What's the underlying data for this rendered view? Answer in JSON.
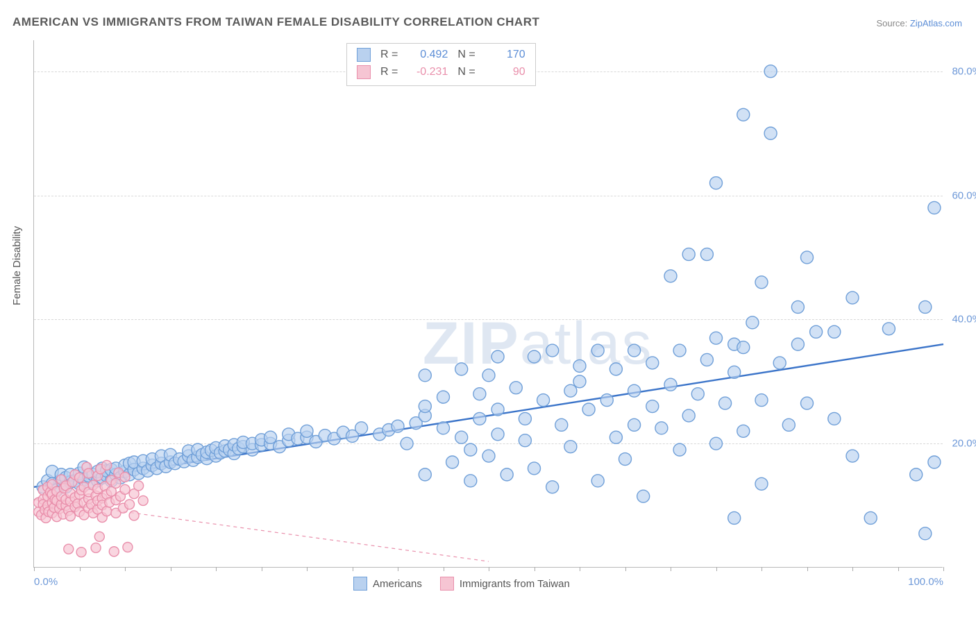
{
  "title": "AMERICAN VS IMMIGRANTS FROM TAIWAN FEMALE DISABILITY CORRELATION CHART",
  "source_prefix": "Source: ",
  "source_link": "ZipAtlas.com",
  "ylabel": "Female Disability",
  "watermark_bold": "ZIP",
  "watermark_light": "atlas",
  "chart": {
    "type": "scatter",
    "xlim": [
      0,
      100
    ],
    "ylim": [
      0,
      85
    ],
    "yticks": [
      20,
      40,
      60,
      80
    ],
    "ytick_labels": [
      "20.0%",
      "40.0%",
      "60.0%",
      "80.0%"
    ],
    "xtick_minor_step": 5,
    "xtick_labels": [
      {
        "pos": 0,
        "label": "0.0%"
      },
      {
        "pos": 100,
        "label": "100.0%"
      }
    ],
    "background_color": "#ffffff",
    "grid_color": "#d8d8d8",
    "axis_color": "#b8b8b8",
    "marker_radius_blue": 9,
    "marker_radius_pink": 7,
    "marker_stroke_width": 1.4,
    "series": [
      {
        "name": "Americans",
        "fill": "#b9d1ef",
        "stroke": "#6f9fd8",
        "fill_opacity": 0.65,
        "r_label": "R =",
        "r_value": "0.492",
        "n_label": "N =",
        "n_value": "170",
        "text_color": "#5b8dd6",
        "regression": {
          "x1": 0,
          "y1": 13,
          "x2": 100,
          "y2": 36,
          "stroke": "#3b74c9",
          "width": 2.4,
          "dash": "none"
        },
        "points": [
          [
            1,
            13
          ],
          [
            1.5,
            14
          ],
          [
            2,
            13.5
          ],
          [
            2,
            15.5
          ],
          [
            2.5,
            12.5
          ],
          [
            3,
            14
          ],
          [
            3,
            15
          ],
          [
            3.5,
            13
          ],
          [
            3.5,
            14.5
          ],
          [
            4,
            13.8
          ],
          [
            4,
            15
          ],
          [
            4.5,
            14
          ],
          [
            5,
            13.5
          ],
          [
            5,
            15.2
          ],
          [
            5.5,
            14.2
          ],
          [
            5.5,
            16.2
          ],
          [
            6,
            13.6
          ],
          [
            6,
            14.8
          ],
          [
            6.5,
            15
          ],
          [
            7,
            14
          ],
          [
            7,
            15.5
          ],
          [
            7.5,
            14.5
          ],
          [
            7.5,
            16
          ],
          [
            8,
            14.8
          ],
          [
            8,
            15.6
          ],
          [
            8.5,
            14
          ],
          [
            8.5,
            15.8
          ],
          [
            9,
            15
          ],
          [
            9,
            16
          ],
          [
            9.5,
            14.5
          ],
          [
            10,
            15.5
          ],
          [
            10,
            16.5
          ],
          [
            10.5,
            15
          ],
          [
            10.5,
            16.8
          ],
          [
            11,
            15.8
          ],
          [
            11,
            17
          ],
          [
            11.5,
            15.2
          ],
          [
            12,
            16
          ],
          [
            12,
            17.2
          ],
          [
            12.5,
            15.6
          ],
          [
            13,
            16.5
          ],
          [
            13,
            17.5
          ],
          [
            13.5,
            16
          ],
          [
            14,
            16.8
          ],
          [
            14,
            18
          ],
          [
            14.5,
            16.3
          ],
          [
            15,
            17
          ],
          [
            15,
            18.2
          ],
          [
            15.5,
            16.8
          ],
          [
            16,
            17.5
          ],
          [
            16.5,
            17.1
          ],
          [
            17,
            18
          ],
          [
            17,
            18.8
          ],
          [
            17.5,
            17.3
          ],
          [
            18,
            17.8
          ],
          [
            18,
            19
          ],
          [
            18.5,
            18.2
          ],
          [
            19,
            17.6
          ],
          [
            19,
            18.6
          ],
          [
            19.5,
            18.9
          ],
          [
            20,
            18
          ],
          [
            20,
            19.3
          ],
          [
            20.5,
            18.5
          ],
          [
            21,
            18.8
          ],
          [
            21,
            19.6
          ],
          [
            21.5,
            19
          ],
          [
            22,
            18.4
          ],
          [
            22,
            19.8
          ],
          [
            22.5,
            19.2
          ],
          [
            23,
            19.5
          ],
          [
            23,
            20.2
          ],
          [
            24,
            19
          ],
          [
            24,
            20
          ],
          [
            25,
            19.8
          ],
          [
            25,
            20.6
          ],
          [
            26,
            20
          ],
          [
            26,
            21
          ],
          [
            27,
            19.5
          ],
          [
            28,
            20.5
          ],
          [
            28,
            21.5
          ],
          [
            29,
            20.8
          ],
          [
            30,
            21
          ],
          [
            30,
            22
          ],
          [
            31,
            20.3
          ],
          [
            32,
            21.3
          ],
          [
            33,
            20.8
          ],
          [
            34,
            21.8
          ],
          [
            35,
            21.2
          ],
          [
            36,
            22.5
          ],
          [
            38,
            21.5
          ],
          [
            39,
            22.2
          ],
          [
            40,
            22.8
          ],
          [
            41,
            20
          ],
          [
            42,
            23.3
          ],
          [
            43,
            24.5
          ],
          [
            43,
            26
          ],
          [
            43,
            31
          ],
          [
            43,
            15
          ],
          [
            45,
            22.5
          ],
          [
            45,
            27.5
          ],
          [
            46,
            17
          ],
          [
            47,
            21
          ],
          [
            47,
            32
          ],
          [
            48,
            14
          ],
          [
            48,
            19
          ],
          [
            49,
            24
          ],
          [
            49,
            28
          ],
          [
            50,
            18
          ],
          [
            50,
            31
          ],
          [
            51,
            21.5
          ],
          [
            51,
            25.5
          ],
          [
            51,
            34
          ],
          [
            52,
            15
          ],
          [
            53,
            29
          ],
          [
            54,
            20.5
          ],
          [
            54,
            24
          ],
          [
            55,
            34
          ],
          [
            55,
            16
          ],
          [
            56,
            27
          ],
          [
            57,
            35
          ],
          [
            57,
            13
          ],
          [
            58,
            23
          ],
          [
            59,
            19.5
          ],
          [
            59,
            28.5
          ],
          [
            60,
            30
          ],
          [
            60,
            32.5
          ],
          [
            61,
            25.5
          ],
          [
            62,
            14
          ],
          [
            62,
            35
          ],
          [
            63,
            27
          ],
          [
            64,
            21
          ],
          [
            64,
            32
          ],
          [
            65,
            17.5
          ],
          [
            66,
            23
          ],
          [
            66,
            28.5
          ],
          [
            66,
            35
          ],
          [
            67,
            11.5
          ],
          [
            68,
            26
          ],
          [
            68,
            33
          ],
          [
            69,
            22.5
          ],
          [
            70,
            29.5
          ],
          [
            70,
            47
          ],
          [
            71,
            19
          ],
          [
            71,
            35
          ],
          [
            72,
            24.5
          ],
          [
            72,
            50.5
          ],
          [
            73,
            28
          ],
          [
            74,
            50.5
          ],
          [
            74,
            33.5
          ],
          [
            75,
            20
          ],
          [
            75,
            37
          ],
          [
            75,
            62
          ],
          [
            76,
            26.5
          ],
          [
            77,
            8
          ],
          [
            77,
            31.5
          ],
          [
            77,
            36
          ],
          [
            78,
            22
          ],
          [
            78,
            35.5
          ],
          [
            78,
            73
          ],
          [
            79,
            39.5
          ],
          [
            80,
            13.5
          ],
          [
            80,
            27
          ],
          [
            80,
            46
          ],
          [
            81,
            70
          ],
          [
            81,
            80
          ],
          [
            82,
            33
          ],
          [
            83,
            23
          ],
          [
            84,
            36
          ],
          [
            84,
            42
          ],
          [
            85,
            26.5
          ],
          [
            85,
            50
          ],
          [
            86,
            38
          ],
          [
            88,
            24
          ],
          [
            88,
            38
          ],
          [
            90,
            18
          ],
          [
            90,
            43.5
          ],
          [
            92,
            8
          ],
          [
            94,
            38.5
          ],
          [
            97,
            15
          ],
          [
            98,
            5.5
          ],
          [
            98,
            42
          ],
          [
            99,
            17
          ],
          [
            99,
            58
          ]
        ]
      },
      {
        "name": "Immigrants from Taiwan",
        "fill": "#f6c5d3",
        "stroke": "#e98fab",
        "fill_opacity": 0.7,
        "r_label": "R =",
        "r_value": "-0.231",
        "n_label": "N =",
        "n_value": "90",
        "text_color": "#e98fab",
        "regression": {
          "x1": 0,
          "y1": 11,
          "x2": 50,
          "y2": 1,
          "stroke": "#e98fab",
          "width": 1.2,
          "dash": "5,5"
        },
        "points": [
          [
            0.5,
            9
          ],
          [
            0.5,
            10.5
          ],
          [
            0.8,
            8.5
          ],
          [
            1,
            11
          ],
          [
            1,
            12.5
          ],
          [
            1,
            10.2
          ],
          [
            1.2,
            9.3
          ],
          [
            1.3,
            8
          ],
          [
            1.5,
            11.5
          ],
          [
            1.5,
            10
          ],
          [
            1.5,
            13
          ],
          [
            1.6,
            9
          ],
          [
            1.8,
            12.2
          ],
          [
            2,
            8.8
          ],
          [
            2,
            10.5
          ],
          [
            2,
            11.8
          ],
          [
            2,
            13.4
          ],
          [
            2.2,
            9.7
          ],
          [
            2.3,
            11
          ],
          [
            2.5,
            8.2
          ],
          [
            2.5,
            10.8
          ],
          [
            2.5,
            12.3
          ],
          [
            2.8,
            9.5
          ],
          [
            3,
            10.2
          ],
          [
            3,
            11.5
          ],
          [
            3,
            14.2
          ],
          [
            3.2,
            8.6
          ],
          [
            3.3,
            12.8
          ],
          [
            3.5,
            10
          ],
          [
            3.5,
            11
          ],
          [
            3.5,
            13.2
          ],
          [
            3.8,
            9.2
          ],
          [
            4,
            10.7
          ],
          [
            4,
            12
          ],
          [
            4,
            8.3
          ],
          [
            4.2,
            13.8
          ],
          [
            4.5,
            9.8
          ],
          [
            4.5,
            11.3
          ],
          [
            4.5,
            15
          ],
          [
            4.8,
            10.3
          ],
          [
            5,
            9
          ],
          [
            5,
            11.8
          ],
          [
            5,
            14.5
          ],
          [
            5.2,
            12.5
          ],
          [
            5.5,
            8.5
          ],
          [
            5.5,
            10.5
          ],
          [
            5.5,
            13
          ],
          [
            5.8,
            16.2
          ],
          [
            6,
            9.6
          ],
          [
            6,
            11.1
          ],
          [
            6,
            12.2
          ],
          [
            6,
            15.2
          ],
          [
            6.3,
            10.2
          ],
          [
            6.5,
            8.8
          ],
          [
            6.5,
            13.3
          ],
          [
            6.8,
            11.6
          ],
          [
            7,
            9.4
          ],
          [
            7,
            10.8
          ],
          [
            7,
            12.7
          ],
          [
            7,
            14.8
          ],
          [
            7.3,
            15.9
          ],
          [
            7.5,
            8.1
          ],
          [
            7.5,
            11.2
          ],
          [
            7.5,
            10.1
          ],
          [
            7.8,
            13.1
          ],
          [
            8,
            9.1
          ],
          [
            8,
            11.8
          ],
          [
            8,
            16.5
          ],
          [
            8.3,
            10.5
          ],
          [
            8.5,
            12.3
          ],
          [
            8.5,
            14.1
          ],
          [
            9,
            8.8
          ],
          [
            9,
            10.9
          ],
          [
            9,
            13.6
          ],
          [
            9.3,
            15.3
          ],
          [
            9.5,
            11.5
          ],
          [
            9.8,
            9.6
          ],
          [
            10,
            12.6
          ],
          [
            10,
            14.6
          ],
          [
            10.5,
            10.2
          ],
          [
            11,
            11.9
          ],
          [
            11,
            8.4
          ],
          [
            11.5,
            13.2
          ],
          [
            12,
            10.8
          ],
          [
            3.8,
            3
          ],
          [
            5.2,
            2.5
          ],
          [
            6.8,
            3.2
          ],
          [
            7.2,
            5
          ],
          [
            8.8,
            2.6
          ],
          [
            10.3,
            3.3
          ]
        ]
      }
    ]
  },
  "legend": {
    "series1_label": "Americans",
    "series2_label": "Immigrants from Taiwan"
  }
}
